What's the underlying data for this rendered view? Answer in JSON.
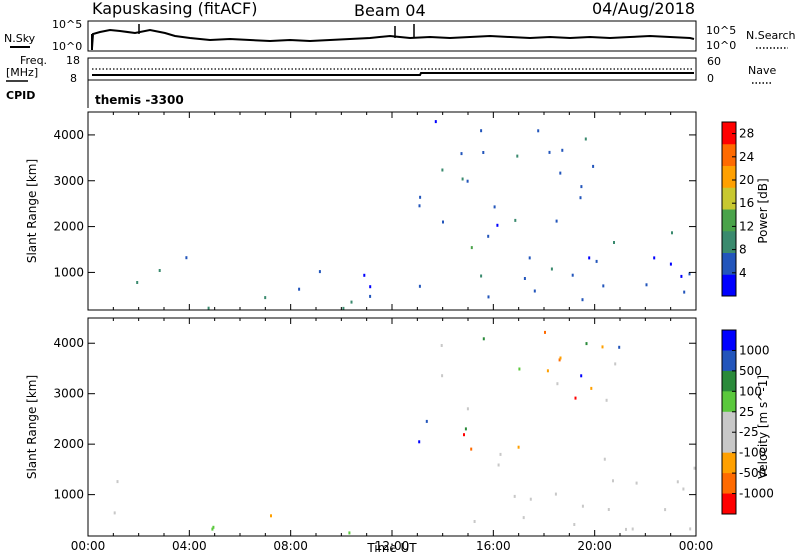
{
  "header": {
    "station": "Kapuskasing (fitACF)",
    "beam": "Beam 04",
    "date": "04/Aug/2018"
  },
  "sky_panel": {
    "left_label": "N.Sky",
    "right_label": "N.Search",
    "left_ticks": [
      "10^5",
      "10^0"
    ],
    "right_ticks": [
      "10^5",
      "10^0"
    ]
  },
  "freq_panel": {
    "left_label_line1": "Freq.",
    "left_label_line2": "[MHz]",
    "right_label": "Nave",
    "left_ticks": [
      "18",
      "8"
    ],
    "right_ticks": [
      "60",
      "0"
    ]
  },
  "cpid_panel": {
    "label": "CPID",
    "value": "themis -3300"
  },
  "colors": {
    "power_scale": [
      "#0000ff",
      "#2255bb",
      "#3a8a6e",
      "#4aa34a",
      "#c8c830",
      "#ffa000",
      "#ff6a00",
      "#ff0000"
    ],
    "velocity_scale": [
      "#ff0000",
      "#ff6a00",
      "#ffa000",
      "#c8c8c8",
      "#c8c8c8",
      "#5ac83c",
      "#2a8a3a",
      "#2255bb",
      "#0000ff"
    ]
  },
  "chart_data": [
    {
      "type": "heatmap",
      "title": "",
      "xlabel": "",
      "ylabel": "Slant Range [km]",
      "xlim": [
        0,
        24
      ],
      "ylim": [
        180,
        4500
      ],
      "x_tick_values": [
        0,
        4,
        8,
        12,
        16,
        20,
        24
      ],
      "y_ticks": [
        "1000",
        "2000",
        "3000",
        "4000"
      ],
      "colorbar": {
        "label": "Power [dB]",
        "ticks": [
          "4",
          "8",
          "12",
          "16",
          "20",
          "24",
          "28"
        ],
        "range": [
          0,
          30
        ]
      },
      "regions": [
        {
          "t0": 0.2,
          "t1": 2.8,
          "r0": 600,
          "r1": 1300,
          "level": 8
        },
        {
          "t0": 1.0,
          "t1": 2.8,
          "r0": 200,
          "r1": 450,
          "level": 24
        },
        {
          "t0": 1.8,
          "t1": 2.6,
          "r0": 800,
          "r1": 1200,
          "level": 18
        },
        {
          "t0": 3.5,
          "t1": 5.5,
          "r0": 1000,
          "r1": 1400,
          "level": 6
        },
        {
          "t0": 2.5,
          "t1": 12.0,
          "r0": 200,
          "r1": 450,
          "level": 10
        },
        {
          "t0": 5.0,
          "t1": 12.0,
          "r0": 300,
          "r1": 800,
          "level": 6
        },
        {
          "t0": 8.0,
          "t1": 11.5,
          "r0": 900,
          "r1": 1300,
          "level": 6
        },
        {
          "t0": 13.0,
          "t1": 24.0,
          "r0": 300,
          "r1": 1800,
          "level": 6
        },
        {
          "t0": 13.5,
          "t1": 15.5,
          "r0": 1300,
          "r1": 1700,
          "level": 14
        },
        {
          "t0": 20.0,
          "t1": 23.8,
          "r0": 1400,
          "r1": 1900,
          "level": 10
        },
        {
          "t0": 13.0,
          "t1": 21.0,
          "r0": 1800,
          "r1": 4500,
          "level": 6
        }
      ]
    },
    {
      "type": "heatmap",
      "title": "",
      "xlabel": "Time UT",
      "ylabel": "Slant Range [km]",
      "xlim": [
        0,
        24
      ],
      "ylim": [
        180,
        4500
      ],
      "x_ticks": [
        "00:00",
        "04:00",
        "08:00",
        "12:00",
        "16:00",
        "20:00",
        "00:00"
      ],
      "y_ticks": [
        "1000",
        "2000",
        "3000",
        "4000"
      ],
      "colorbar": {
        "label": "Velocity [m s^-1]",
        "ticks": [
          "1000",
          "500",
          "100",
          "25",
          "-25",
          "-100",
          "-500",
          "-1000"
        ]
      },
      "regions": [
        {
          "t0": 0.2,
          "t1": 2.8,
          "r0": 600,
          "r1": 1300,
          "class": "-25..25"
        },
        {
          "t0": 1.0,
          "t1": 2.8,
          "r0": 200,
          "r1": 450,
          "class": "-100..-25"
        },
        {
          "t0": 1.8,
          "t1": 2.6,
          "r0": 800,
          "r1": 1300,
          "class": "-500..-100"
        },
        {
          "t0": 2.5,
          "t1": 12.0,
          "r0": 200,
          "r1": 450,
          "class": "25..100"
        },
        {
          "t0": 5.0,
          "t1": 8.0,
          "r0": 400,
          "r1": 800,
          "class": "-100..-25"
        },
        {
          "t0": 13.0,
          "t1": 24.0,
          "r0": 300,
          "r1": 1900,
          "class": "-25..25"
        },
        {
          "t0": 13.0,
          "t1": 21.0,
          "r0": 1800,
          "r1": 4500,
          "class": "mixed"
        }
      ]
    }
  ]
}
